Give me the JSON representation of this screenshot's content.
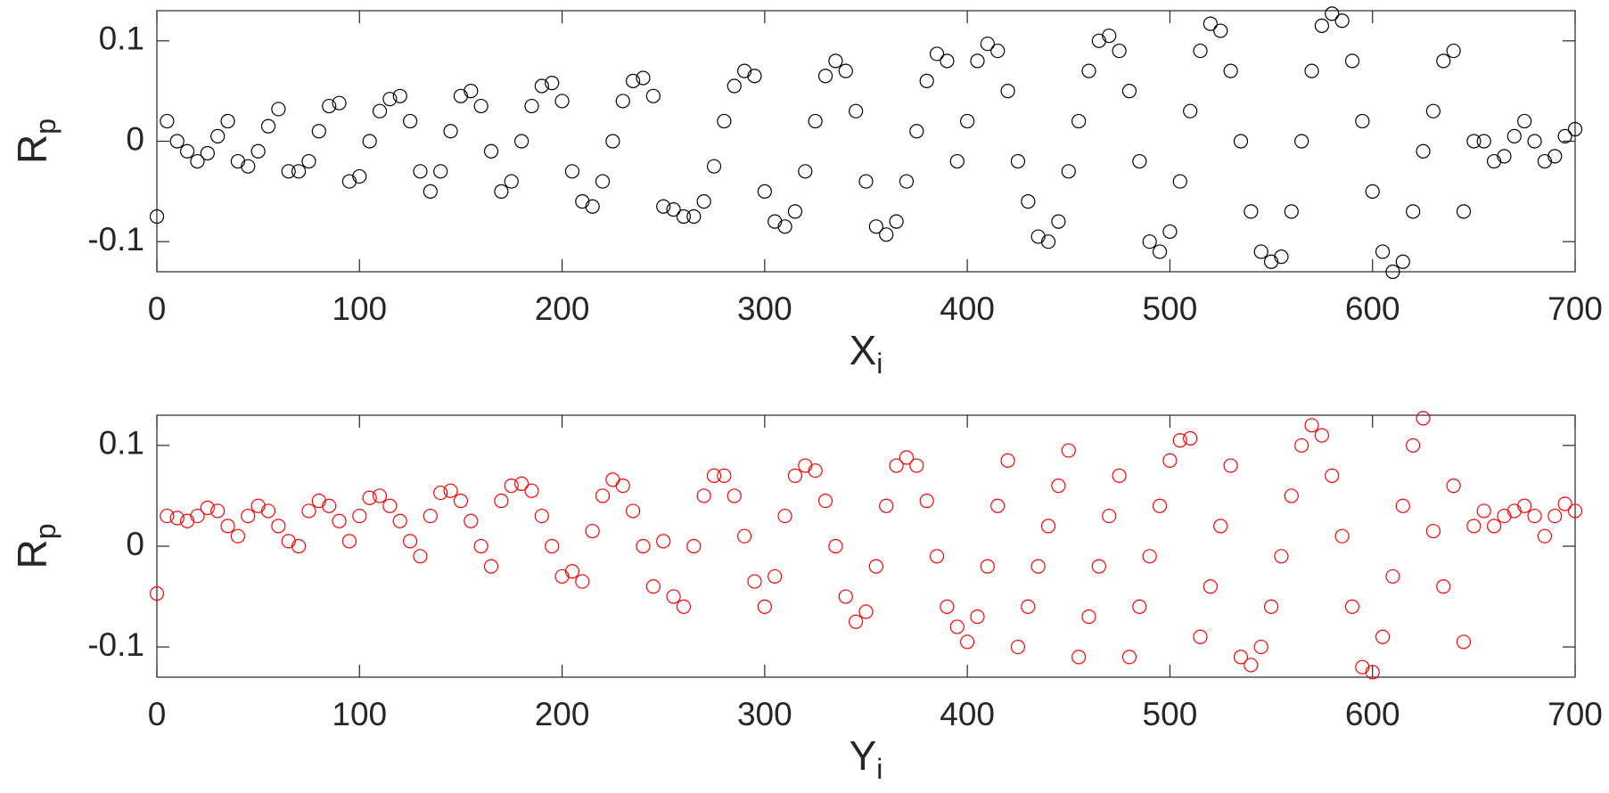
{
  "chart_data": [
    {
      "type": "scatter",
      "color": "#000000",
      "ylabel": "R",
      "ylabel_subscript": "p",
      "xlabel": "X",
      "xlabel_subscript": "i",
      "xlim": [
        0,
        700
      ],
      "xticks": [
        0,
        100,
        200,
        300,
        400,
        500,
        600,
        700
      ],
      "ylim": [
        -0.13,
        0.13
      ],
      "yticks": [
        -0.1,
        0,
        0.1
      ],
      "x": [
        0,
        5,
        10,
        15,
        20,
        25,
        30,
        35,
        40,
        45,
        50,
        55,
        60,
        65,
        70,
        75,
        80,
        85,
        90,
        95,
        100,
        105,
        110,
        115,
        120,
        125,
        130,
        135,
        140,
        145,
        150,
        155,
        160,
        165,
        170,
        175,
        180,
        185,
        190,
        195,
        200,
        205,
        210,
        215,
        220,
        225,
        230,
        235,
        240,
        245,
        250,
        255,
        260,
        265,
        270,
        275,
        280,
        285,
        290,
        295,
        300,
        305,
        310,
        315,
        320,
        325,
        330,
        335,
        340,
        345,
        350,
        355,
        360,
        365,
        370,
        375,
        380,
        385,
        390,
        395,
        400,
        405,
        410,
        415,
        420,
        425,
        430,
        435,
        440,
        445,
        450,
        455,
        460,
        465,
        470,
        475,
        480,
        485,
        490,
        495,
        500,
        505,
        510,
        515,
        520,
        525,
        530,
        535,
        540,
        545,
        550,
        555,
        560,
        565,
        570,
        575,
        580,
        585,
        590,
        595,
        600,
        605,
        610,
        615,
        620,
        625,
        630,
        635,
        640,
        645,
        650,
        655,
        660,
        665,
        670,
        675,
        680,
        685,
        690,
        695,
        700
      ],
      "values": [
        -0.075,
        0.02,
        0.0,
        -0.01,
        -0.02,
        -0.012,
        0.005,
        0.02,
        -0.02,
        -0.025,
        -0.01,
        0.015,
        0.032,
        -0.03,
        -0.03,
        -0.02,
        0.01,
        0.035,
        0.038,
        -0.04,
        -0.035,
        0.0,
        0.03,
        0.042,
        0.045,
        0.02,
        -0.03,
        -0.05,
        -0.03,
        0.01,
        0.045,
        0.05,
        0.035,
        -0.01,
        -0.05,
        -0.04,
        0.0,
        0.035,
        0.055,
        0.058,
        0.04,
        -0.03,
        -0.06,
        -0.065,
        -0.04,
        0.0,
        0.04,
        0.06,
        0.063,
        0.045,
        -0.065,
        -0.068,
        -0.075,
        -0.075,
        -0.06,
        -0.025,
        0.02,
        0.055,
        0.07,
        0.065,
        -0.05,
        -0.08,
        -0.085,
        -0.07,
        -0.03,
        0.02,
        0.065,
        0.08,
        0.07,
        0.03,
        -0.04,
        -0.085,
        -0.093,
        -0.08,
        -0.04,
        0.01,
        0.06,
        0.087,
        0.08,
        -0.02,
        0.02,
        0.08,
        0.097,
        0.09,
        0.05,
        -0.02,
        -0.06,
        -0.095,
        -0.1,
        -0.08,
        -0.03,
        0.02,
        0.07,
        0.1,
        0.105,
        0.09,
        0.05,
        -0.02,
        -0.1,
        -0.11,
        -0.09,
        -0.04,
        0.03,
        0.09,
        0.117,
        0.11,
        0.07,
        0.0,
        -0.07,
        -0.11,
        -0.12,
        -0.115,
        -0.07,
        0.0,
        0.07,
        0.115,
        0.127,
        0.12,
        0.08,
        0.02,
        -0.05,
        -0.11,
        -0.13,
        -0.12,
        -0.07,
        -0.01,
        0.03,
        0.08,
        0.09,
        -0.07,
        0.0,
        0.0,
        -0.02,
        -0.015,
        0.005,
        0.02,
        0.0,
        -0.02,
        -0.015,
        0.005,
        0.012
      ]
    },
    {
      "type": "scatter",
      "color": "#ff0000",
      "ylabel": "R",
      "ylabel_subscript": "p",
      "xlabel": "Y",
      "xlabel_subscript": "i",
      "xlim": [
        0,
        700
      ],
      "xticks": [
        0,
        100,
        200,
        300,
        400,
        500,
        600,
        700
      ],
      "ylim": [
        -0.13,
        0.13
      ],
      "yticks": [
        -0.1,
        0,
        0.1
      ],
      "x": [
        0,
        5,
        10,
        15,
        20,
        25,
        30,
        35,
        40,
        45,
        50,
        55,
        60,
        65,
        70,
        75,
        80,
        85,
        90,
        95,
        100,
        105,
        110,
        115,
        120,
        125,
        130,
        135,
        140,
        145,
        150,
        155,
        160,
        165,
        170,
        175,
        180,
        185,
        190,
        195,
        200,
        205,
        210,
        215,
        220,
        225,
        230,
        235,
        240,
        245,
        250,
        255,
        260,
        265,
        270,
        275,
        280,
        285,
        290,
        295,
        300,
        305,
        310,
        315,
        320,
        325,
        330,
        335,
        340,
        345,
        350,
        355,
        360,
        365,
        370,
        375,
        380,
        385,
        390,
        395,
        400,
        405,
        410,
        415,
        420,
        425,
        430,
        435,
        440,
        445,
        450,
        455,
        460,
        465,
        470,
        475,
        480,
        485,
        490,
        495,
        500,
        505,
        510,
        515,
        520,
        525,
        530,
        535,
        540,
        545,
        550,
        555,
        560,
        565,
        570,
        575,
        580,
        585,
        590,
        595,
        600,
        605,
        610,
        615,
        620,
        625,
        630,
        635,
        640,
        645,
        650,
        655,
        660,
        665,
        670,
        675,
        680,
        685,
        690,
        695,
        700
      ],
      "values": [
        -0.047,
        0.03,
        0.028,
        0.025,
        0.03,
        0.038,
        0.035,
        0.02,
        0.01,
        0.03,
        0.04,
        0.035,
        0.02,
        0.005,
        0.0,
        0.035,
        0.045,
        0.04,
        0.025,
        0.005,
        0.03,
        0.048,
        0.05,
        0.04,
        0.025,
        0.005,
        -0.01,
        0.03,
        0.053,
        0.055,
        0.045,
        0.025,
        0.0,
        -0.02,
        0.045,
        0.06,
        0.062,
        0.055,
        0.03,
        0.0,
        -0.03,
        -0.025,
        -0.035,
        0.015,
        0.05,
        0.066,
        0.06,
        0.035,
        0.0,
        -0.04,
        0.005,
        -0.05,
        -0.06,
        0.0,
        0.05,
        0.07,
        0.07,
        0.05,
        0.01,
        -0.035,
        -0.06,
        -0.03,
        0.03,
        0.07,
        0.08,
        0.075,
        0.045,
        0.0,
        -0.05,
        -0.075,
        -0.065,
        -0.02,
        0.04,
        0.08,
        0.088,
        0.08,
        0.045,
        -0.01,
        -0.06,
        -0.08,
        -0.095,
        -0.07,
        -0.02,
        0.04,
        0.085,
        -0.1,
        -0.06,
        -0.02,
        0.02,
        0.06,
        0.095,
        -0.11,
        -0.07,
        -0.02,
        0.03,
        0.07,
        -0.11,
        -0.06,
        -0.01,
        0.04,
        0.085,
        0.105,
        0.107,
        -0.09,
        -0.04,
        0.02,
        0.08,
        -0.11,
        -0.118,
        -0.1,
        -0.06,
        -0.01,
        0.05,
        0.1,
        0.12,
        0.11,
        0.07,
        0.01,
        -0.06,
        -0.12,
        -0.125,
        -0.09,
        -0.03,
        0.04,
        0.1,
        0.127,
        0.015,
        -0.04,
        0.06,
        -0.095,
        0.02,
        0.035,
        0.02,
        0.03,
        0.035,
        0.04,
        0.03,
        0.01,
        0.03,
        0.042,
        0.035
      ]
    }
  ]
}
